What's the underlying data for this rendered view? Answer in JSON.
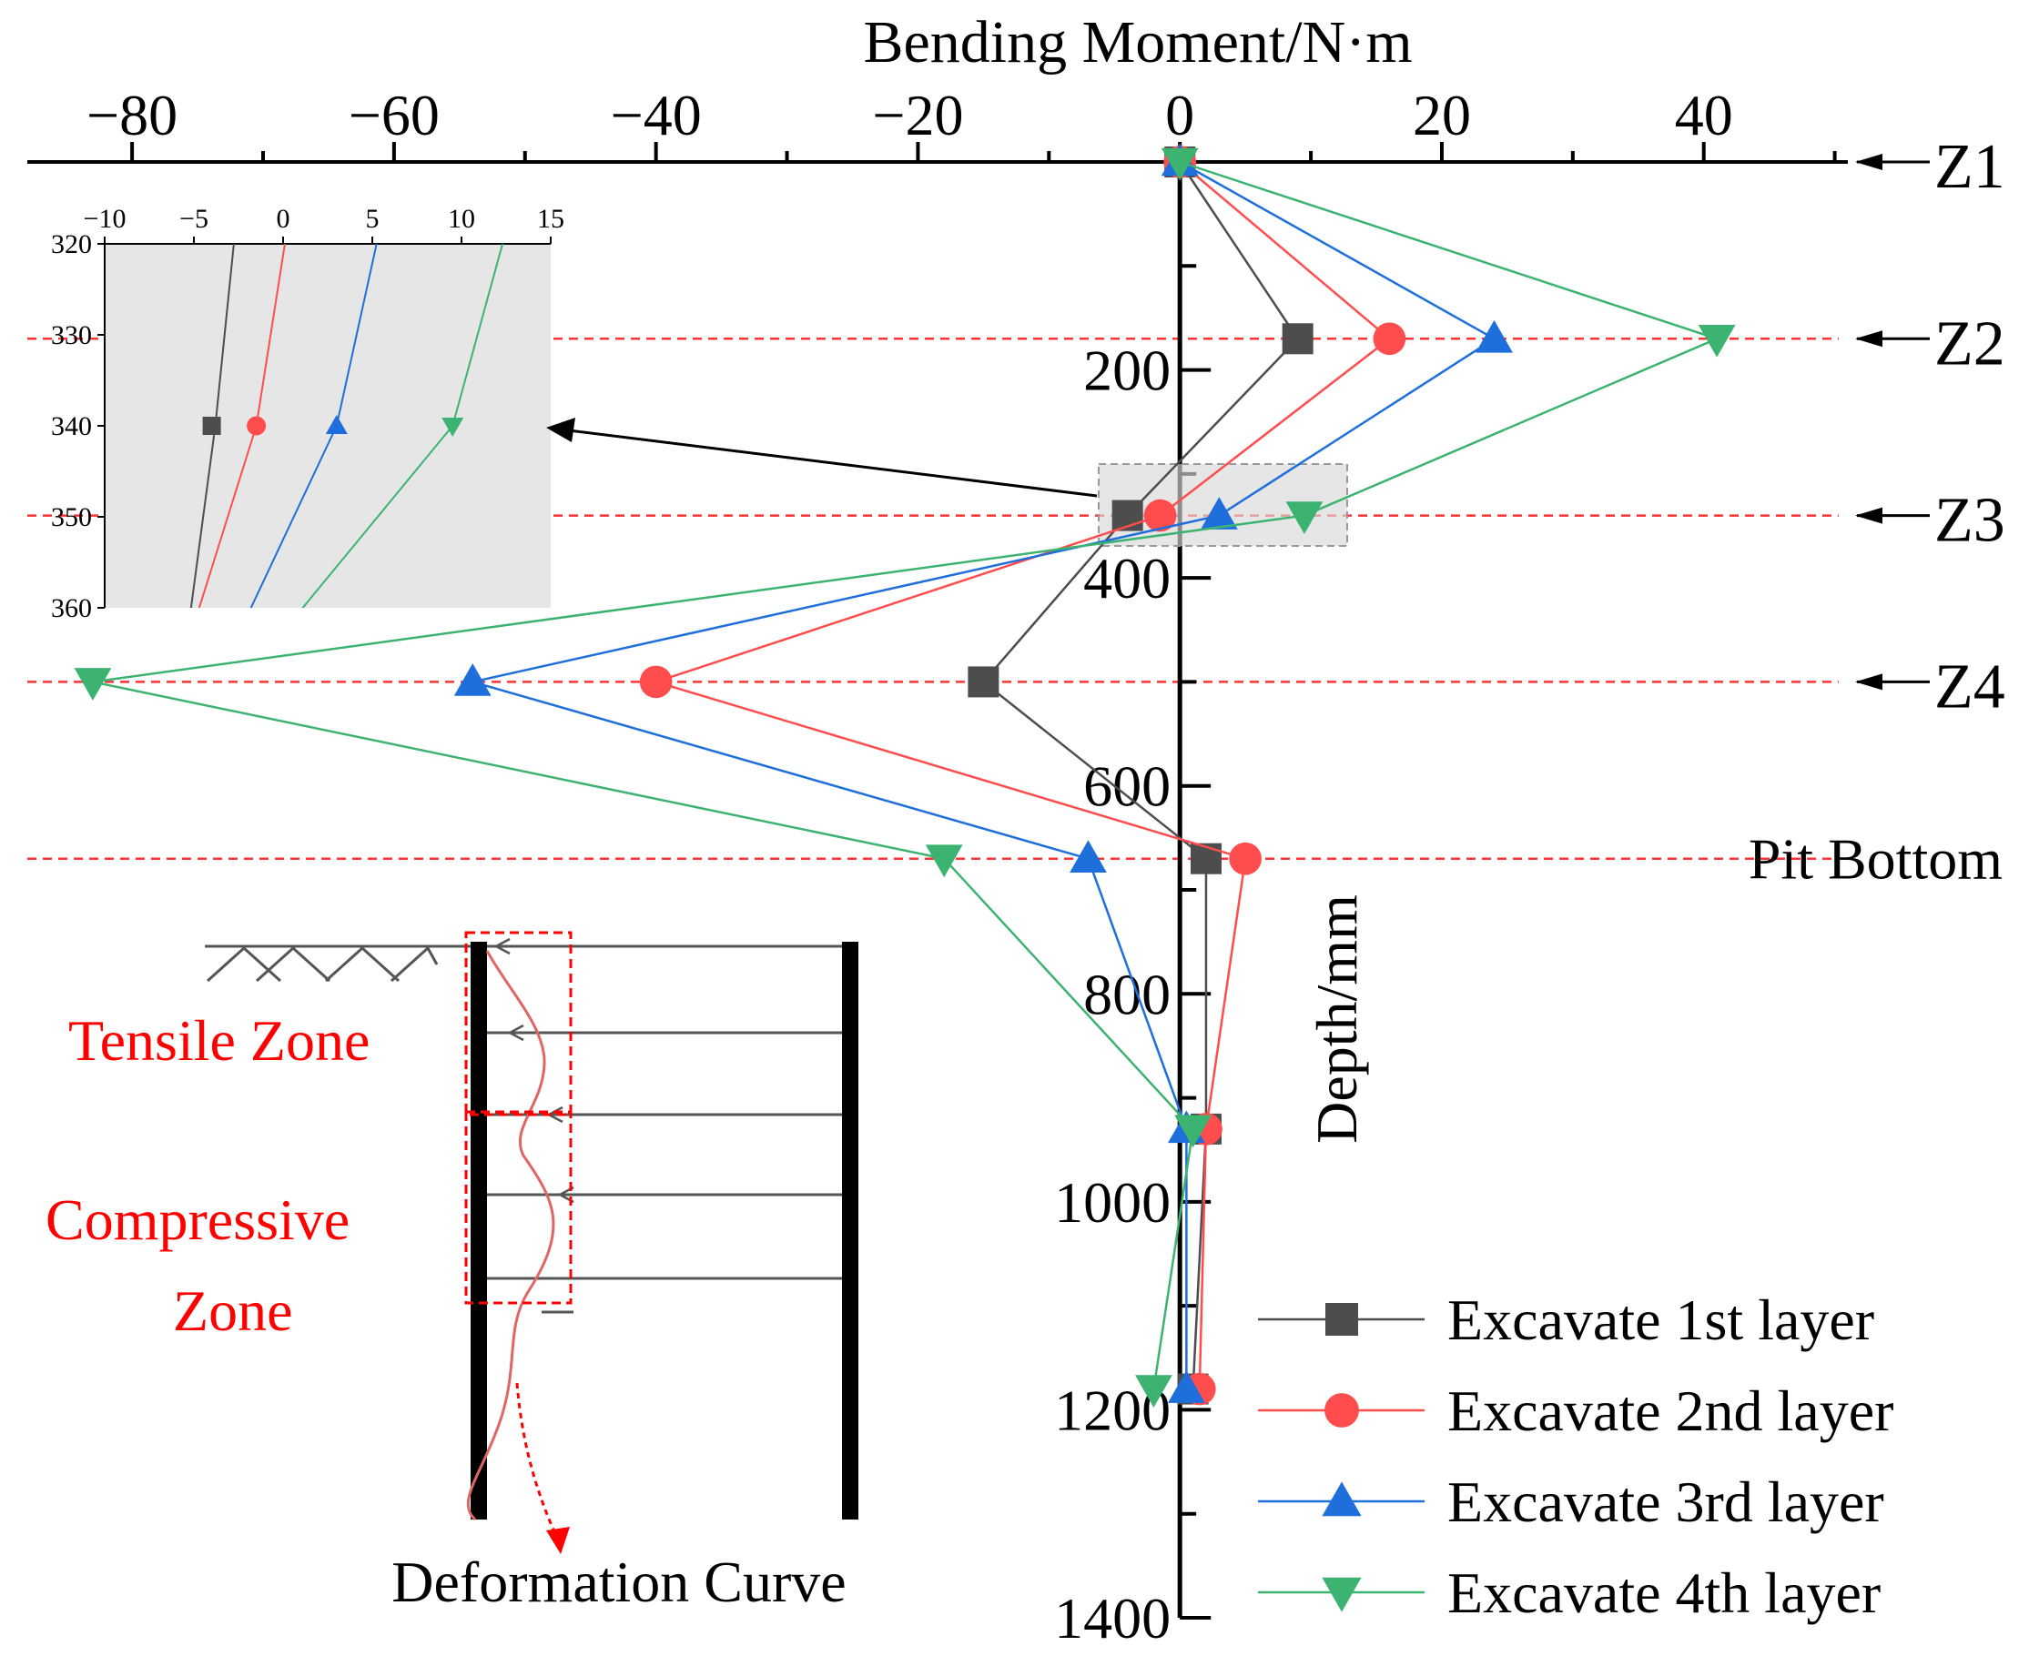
{
  "chart_data": {
    "type": "line",
    "orientation": "vertical-depth",
    "title": "",
    "xlabel": "Bending Moment/N·m",
    "ylabel": "Depth/mm",
    "xlim": [
      -88,
      51
    ],
    "ylim": [
      0,
      1400
    ],
    "xticks": [
      -80,
      -60,
      -40,
      -20,
      0,
      20,
      40
    ],
    "xtick_labels": [
      "−80",
      "−60",
      "−40",
      "−20",
      "0",
      "20",
      "40"
    ],
    "yticks": [
      200,
      400,
      600,
      800,
      1000,
      1200,
      1400
    ],
    "ytick_labels": [
      "200",
      "400",
      "600",
      "800",
      "1000",
      "1200",
      "1400"
    ],
    "series": [
      {
        "name": "Excavate 1st layer",
        "color": "#4d4d4d",
        "marker": "square",
        "points": [
          [
            0,
            0
          ],
          [
            9,
            170
          ],
          [
            -4,
            340
          ],
          [
            -15,
            500
          ],
          [
            2,
            670
          ],
          [
            2,
            930
          ],
          [
            1,
            1180
          ]
        ]
      },
      {
        "name": "Excavate 2nd layer",
        "color": "#ff4d4d",
        "marker": "circle",
        "points": [
          [
            0,
            0
          ],
          [
            16,
            170
          ],
          [
            -1.5,
            340
          ],
          [
            -40,
            500
          ],
          [
            5,
            670
          ],
          [
            2,
            930
          ],
          [
            1.5,
            1180
          ]
        ]
      },
      {
        "name": "Excavate 3rd layer",
        "color": "#1e6fdc",
        "marker": "triangle-up",
        "points": [
          [
            0,
            0
          ],
          [
            24,
            170
          ],
          [
            3,
            340
          ],
          [
            -54,
            500
          ],
          [
            -7,
            670
          ],
          [
            0.5,
            930
          ],
          [
            0.5,
            1180
          ]
        ]
      },
      {
        "name": "Excavate 4th layer",
        "color": "#3cb371",
        "marker": "triangle-down",
        "points": [
          [
            0,
            0
          ],
          [
            41,
            170
          ],
          [
            9.5,
            340
          ],
          [
            -83,
            500
          ],
          [
            -18,
            670
          ],
          [
            1,
            930
          ],
          [
            -2,
            1180
          ]
        ]
      }
    ],
    "reference_lines": [
      {
        "label": "Z1",
        "depth": 0
      },
      {
        "label": "Z2",
        "depth": 170
      },
      {
        "label": "Z3",
        "depth": 340
      },
      {
        "label": "Z4",
        "depth": 500
      },
      {
        "label": "Pit Bottom",
        "depth": 670
      }
    ],
    "inset": {
      "description": "zoom of Z3 region",
      "xlim": [
        -10,
        15
      ],
      "ylim": [
        320,
        360
      ],
      "xticks": [
        -10,
        -5,
        0,
        5,
        10,
        15
      ],
      "xtick_labels": [
        "−10",
        "−5",
        "0",
        "5",
        "10",
        "15"
      ],
      "yticks": [
        320,
        330,
        340,
        350,
        360
      ],
      "ytick_labels": [
        "320",
        "330",
        "340",
        "350",
        "360"
      ]
    },
    "diagram": {
      "tensile_label": "Tensile Zone",
      "compressive_label_line1": "Compressive",
      "compressive_label_line2": "Zone",
      "curve_label": "Deformation Curve"
    },
    "legend_position": "bottom-right"
  }
}
